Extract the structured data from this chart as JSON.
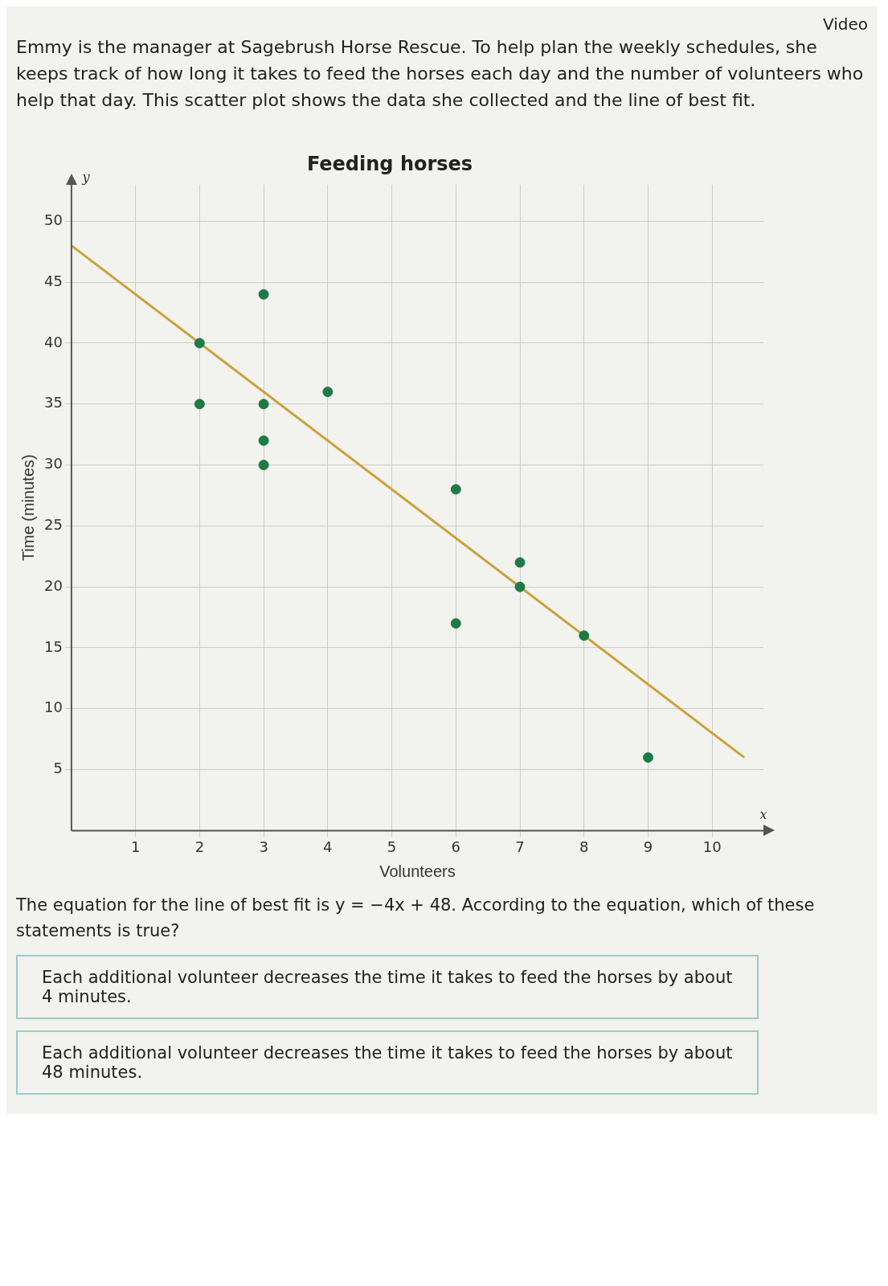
{
  "chart_data": {
    "type": "scatter",
    "title": "Feeding horses",
    "subtitle": "Emmy is the manager at Sagebrush Horse Rescue. To help plan the weekly schedules, she keeps track of how long it takes to feed the horses each day and the number of volunteers who help that day. This scatter plot shows the data she collected and the line of best fit.",
    "xlabel": "Volunteers",
    "ylabel": "Time (minutes)",
    "x": [
      2,
      2,
      3,
      3,
      3,
      3,
      4,
      6,
      6,
      7,
      7,
      8,
      9
    ],
    "series": [
      {
        "color": "#1e7a46",
        "values": [
          40,
          35,
          44,
          35,
          32,
          30,
          36,
          28,
          17,
          22,
          20,
          16,
          6
        ]
      },
      {
        "type": "line",
        "marker": "none",
        "color": "#c9a23a",
        "x": [
          0,
          10.5
        ],
        "values": [
          48,
          6
        ]
      }
    ],
    "xlim": [
      0,
      10.8
    ],
    "ylim": [
      0,
      53
    ],
    "xticks": [
      1,
      2,
      3,
      4,
      5,
      6,
      7,
      8,
      9,
      10
    ],
    "yticks": [
      5,
      10,
      15,
      20,
      25,
      30,
      35,
      40,
      45,
      50
    ],
    "grid": true,
    "marker": "circle",
    "annotations": [
      "Video",
      "x",
      "y",
      "The equation for the line of best fit is y = −4x + 48. According to the equation, which of these statements is true?",
      "Each additional volunteer decreases the time it takes to feed the horses by about 4 minutes.",
      "Each additional volunteer decreases the time it takes to feed the horses by about 48 minutes."
    ]
  }
}
